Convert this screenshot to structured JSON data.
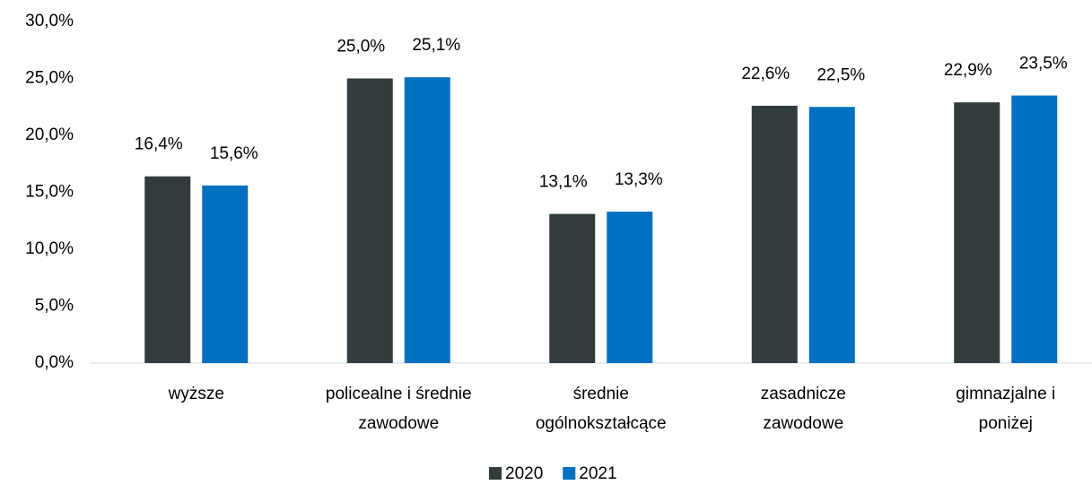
{
  "chart_data": {
    "type": "bar",
    "categories": [
      [
        "wyższe"
      ],
      [
        "policealne i średnie",
        "zawodowe"
      ],
      [
        "średnie",
        "ogólnokształcące"
      ],
      [
        "zasadnicze",
        "zawodowe"
      ],
      [
        "gimnazjalne i",
        "poniżej"
      ]
    ],
    "series": [
      {
        "name": "2020",
        "color": "#323b3d",
        "values": [
          16.4,
          25.0,
          13.1,
          22.6,
          22.9
        ],
        "value_labels": [
          "16,4%",
          "25,0%",
          "13,1%",
          "22,6%",
          "22,9%"
        ]
      },
      {
        "name": "2021",
        "color": "#0070c0",
        "values": [
          15.6,
          25.1,
          13.3,
          22.5,
          23.5
        ],
        "value_labels": [
          "15,6%",
          "25,1%",
          "13,3%",
          "22,5%",
          "23,5%"
        ]
      }
    ],
    "ylim": [
      0,
      30
    ],
    "yticks": [
      {
        "value": 0,
        "label": "0,0%"
      },
      {
        "value": 5,
        "label": "5,0%"
      },
      {
        "value": 10,
        "label": "10,0%"
      },
      {
        "value": 15,
        "label": "15,0%"
      },
      {
        "value": 20,
        "label": "20,0%"
      },
      {
        "value": 25,
        "label": "25,0%"
      },
      {
        "value": 30,
        "label": "30,0%"
      }
    ],
    "grid": false
  }
}
